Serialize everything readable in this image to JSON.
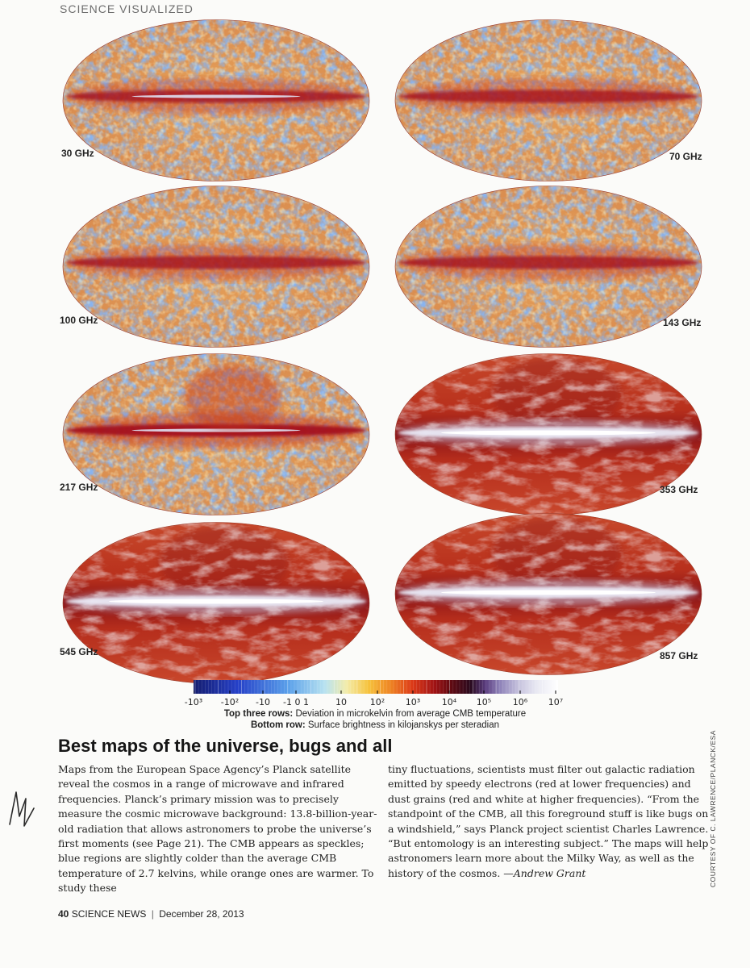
{
  "section_label": "SCIENCE VISUALIZED",
  "maps": [
    {
      "frequency_label": "30 GHz",
      "style": "cmb"
    },
    {
      "frequency_label": "70 GHz",
      "style": "cmb"
    },
    {
      "frequency_label": "100 GHz",
      "style": "cmb"
    },
    {
      "frequency_label": "143 GHz",
      "style": "cmb"
    },
    {
      "frequency_label": "217 GHz",
      "style": "cmb"
    },
    {
      "frequency_label": "353 GHz",
      "style": "dust"
    },
    {
      "frequency_label": "545 GHz",
      "style": "dust"
    },
    {
      "frequency_label": "857 GHz",
      "style": "dust"
    }
  ],
  "colorbar": {
    "tick_labels": [
      "-10³",
      "-10²",
      "-10",
      "-1 0 1",
      "10",
      "10²",
      "10³",
      "10⁴",
      "10⁵",
      "10⁶",
      "10⁷"
    ]
  },
  "scale_caption": {
    "top_label": "Top three rows:",
    "top_text": "Deviation in microkelvin from average CMB temperature",
    "bottom_label": "Bottom row:",
    "bottom_text": "Surface brightness in kilojanskys per steradian"
  },
  "headline": "Best maps of the universe, bugs and all",
  "body_left": "Maps from the European Space Agency’s Planck satellite reveal the cosmos in a range of microwave and infrared frequencies. Planck’s primary mission was to precisely measure the cosmic microwave background: 13.8-billion-year-old radiation that allows astronomers to probe the universe’s first moments (see Page 21). The CMB appears as speckles; blue regions are slightly colder than the average CMB temperature of 2.7 kelvins, while orange ones are warmer. To study these",
  "body_right": "tiny fluctuations, scientists must filter out galactic radiation emitted by speedy electrons (red at lower frequencies) and dust grains (red and white at higher frequencies). “From the standpoint of the CMB, all this foreground stuff is like bugs on a windshield,” says Planck project scientist Charles Lawrence. “But entomology is an interesting subject.” The maps will help astronomers learn more about the Milky Way, as well as the history of the cosmos. —",
  "byline": "Andrew Grant",
  "credit": "COURTESY OF C. LAWRENCE/PLANCK/ESA",
  "footer": {
    "page_number": "40",
    "publication": "SCIENCE NEWS",
    "date": "December 28, 2013"
  }
}
